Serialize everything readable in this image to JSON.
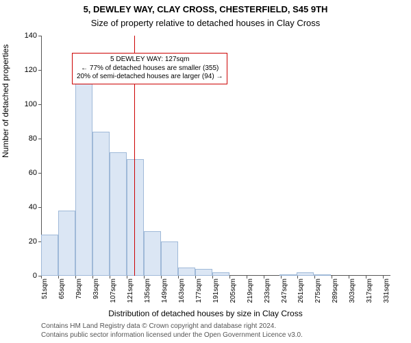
{
  "title_line1": "5, DEWLEY WAY, CLAY CROSS, CHESTERFIELD, S45 9TH",
  "title_line2": "Size of property relative to detached houses in Clay Cross",
  "title_fontsize1": 13,
  "title_fontsize2": 13,
  "ylabel": "Number of detached properties",
  "xlabel": "Distribution of detached houses by size in Clay Cross",
  "caption1": "Contains HM Land Registry data © Crown copyright and database right 2024.",
  "caption2": "Contains public sector information licensed under the Open Government Licence v3.0.",
  "histogram": {
    "type": "histogram",
    "x_min": 51,
    "x_max": 337,
    "y_min": 0,
    "y_max": 140,
    "ytick_step": 20,
    "xtick_start": 51,
    "xtick_step": 14,
    "xtick_unit": "sqm",
    "bin_width": 14,
    "bar_fill": "#dbe6f4",
    "bar_stroke": "#9fb9d8",
    "bins": [
      {
        "start": 51,
        "count": 24
      },
      {
        "start": 65,
        "count": 38
      },
      {
        "start": 79,
        "count": 115
      },
      {
        "start": 93,
        "count": 84
      },
      {
        "start": 107,
        "count": 72
      },
      {
        "start": 121,
        "count": 68
      },
      {
        "start": 135,
        "count": 26
      },
      {
        "start": 149,
        "count": 20
      },
      {
        "start": 163,
        "count": 5
      },
      {
        "start": 177,
        "count": 4
      },
      {
        "start": 191,
        "count": 2
      },
      {
        "start": 204,
        "count": 0
      },
      {
        "start": 218,
        "count": 0
      },
      {
        "start": 232,
        "count": 0
      },
      {
        "start": 246,
        "count": 1
      },
      {
        "start": 260,
        "count": 2
      },
      {
        "start": 274,
        "count": 1
      },
      {
        "start": 288,
        "count": 0
      },
      {
        "start": 302,
        "count": 0
      },
      {
        "start": 316,
        "count": 0
      }
    ],
    "marker": {
      "value": 127,
      "color": "#cc0000"
    },
    "annotation": {
      "line1": "5 DEWLEY WAY: 127sqm",
      "line2": "← 77% of detached houses are smaller (355)",
      "line3": "20% of semi-detached houses are larger (94) →",
      "border_color": "#cc0000",
      "background": "#ffffff"
    }
  }
}
